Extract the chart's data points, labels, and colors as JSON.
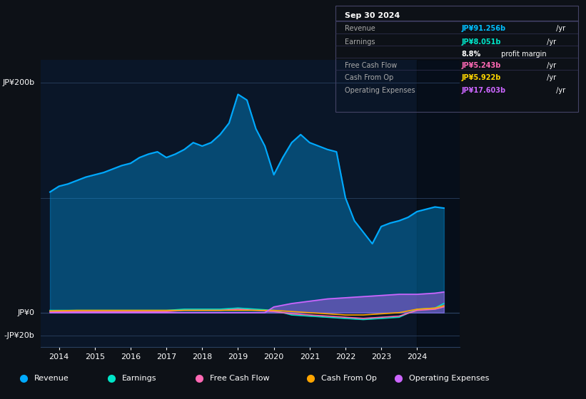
{
  "bg_color": "#0d1117",
  "plot_bg_color": "#0a1628",
  "title_box": {
    "date": "Sep 30 2024",
    "rows": [
      {
        "label": "Revenue",
        "value": "JP¥91.256b",
        "suffix": " /yr",
        "value_color": "#00bfff"
      },
      {
        "label": "Earnings",
        "value": "JP¥8.051b",
        "suffix": " /yr",
        "value_color": "#00e5c8"
      },
      {
        "label": "",
        "value": "8.8%",
        "suffix": " profit margin",
        "value_color": "#ffffff"
      },
      {
        "label": "Free Cash Flow",
        "value": "JP¥5.243b",
        "suffix": " /yr",
        "value_color": "#ff69b4"
      },
      {
        "label": "Cash From Op",
        "value": "JP¥5.922b",
        "suffix": " /yr",
        "value_color": "#ffd700"
      },
      {
        "label": "Operating Expenses",
        "value": "JP¥17.603b",
        "suffix": " /yr",
        "value_color": "#cc66ff"
      }
    ]
  },
  "ylabel_top": "JP¥200b",
  "ylabel_mid": "JP¥0",
  "ylabel_bot": "-JP¥20b",
  "ylim": [
    -30,
    220
  ],
  "xlim_start": 2013.5,
  "xlim_end": 2025.2,
  "xticks": [
    2014,
    2015,
    2016,
    2017,
    2018,
    2019,
    2020,
    2021,
    2022,
    2023,
    2024
  ],
  "series": {
    "revenue": {
      "color": "#00aaff",
      "fill_alpha": 0.35,
      "label": "Revenue"
    },
    "earnings": {
      "color": "#00e5c8",
      "label": "Earnings"
    },
    "fcf": {
      "color": "#ff69b4",
      "label": "Free Cash Flow"
    },
    "cashop": {
      "color": "#ffa500",
      "label": "Cash From Op"
    },
    "opex": {
      "color": "#cc66ff",
      "label": "Operating Expenses"
    }
  },
  "revenue_data": {
    "x": [
      2013.75,
      2014.0,
      2014.25,
      2014.5,
      2014.75,
      2015.0,
      2015.25,
      2015.5,
      2015.75,
      2016.0,
      2016.25,
      2016.5,
      2016.75,
      2017.0,
      2017.25,
      2017.5,
      2017.75,
      2018.0,
      2018.25,
      2018.5,
      2018.75,
      2019.0,
      2019.25,
      2019.5,
      2019.75,
      2020.0,
      2020.25,
      2020.5,
      2020.75,
      2021.0,
      2021.25,
      2021.5,
      2021.75,
      2022.0,
      2022.25,
      2022.5,
      2022.75,
      2023.0,
      2023.25,
      2023.5,
      2023.75,
      2024.0,
      2024.25,
      2024.5,
      2024.75
    ],
    "y": [
      105,
      110,
      112,
      115,
      118,
      120,
      122,
      125,
      128,
      130,
      135,
      138,
      140,
      135,
      138,
      142,
      148,
      145,
      148,
      155,
      165,
      190,
      185,
      160,
      145,
      120,
      135,
      148,
      155,
      148,
      145,
      142,
      140,
      100,
      80,
      70,
      60,
      75,
      78,
      80,
      83,
      88,
      90,
      92,
      91
    ]
  },
  "earnings_data": {
    "x": [
      2013.75,
      2014.5,
      2015.0,
      2015.5,
      2016.0,
      2016.5,
      2017.0,
      2017.5,
      2018.0,
      2018.5,
      2019.0,
      2019.5,
      2020.0,
      2020.5,
      2021.0,
      2021.5,
      2022.0,
      2022.5,
      2023.0,
      2023.5,
      2024.0,
      2024.5,
      2024.75
    ],
    "y": [
      2,
      2,
      2,
      2,
      2,
      2,
      2,
      3,
      3,
      3,
      4,
      3,
      2,
      -2,
      -3,
      -4,
      -5,
      -6,
      -5,
      -4,
      3,
      4,
      8
    ]
  },
  "fcf_data": {
    "x": [
      2013.75,
      2014.5,
      2015.0,
      2015.5,
      2016.0,
      2016.5,
      2017.0,
      2017.5,
      2018.0,
      2018.5,
      2019.0,
      2019.5,
      2020.0,
      2020.5,
      2021.0,
      2021.5,
      2022.0,
      2022.5,
      2023.0,
      2023.5,
      2024.0,
      2024.5,
      2024.75
    ],
    "y": [
      1,
      1,
      1,
      1,
      1,
      1,
      1,
      2,
      2,
      2,
      3,
      2,
      1,
      -1,
      -2,
      -3,
      -4,
      -5,
      -4,
      -3,
      2,
      3,
      5
    ]
  },
  "cashop_data": {
    "x": [
      2013.75,
      2014.5,
      2015.0,
      2015.5,
      2016.0,
      2016.5,
      2017.0,
      2017.5,
      2018.0,
      2018.5,
      2019.0,
      2019.5,
      2020.0,
      2020.5,
      2021.0,
      2021.5,
      2022.0,
      2022.5,
      2023.0,
      2023.5,
      2024.0,
      2024.5,
      2024.75
    ],
    "y": [
      1.5,
      2,
      2,
      2,
      2,
      2,
      2,
      2,
      2,
      2,
      2,
      2,
      2,
      1,
      0,
      -1,
      -2,
      -2,
      -1,
      0,
      3,
      4,
      6
    ]
  },
  "opex_data": {
    "x": [
      2013.75,
      2014.5,
      2015.0,
      2015.5,
      2016.0,
      2016.5,
      2017.0,
      2017.5,
      2018.0,
      2018.5,
      2019.0,
      2019.5,
      2019.75,
      2020.0,
      2020.5,
      2021.0,
      2021.5,
      2022.0,
      2022.5,
      2023.0,
      2023.5,
      2024.0,
      2024.5,
      2024.75
    ],
    "y": [
      0,
      0,
      0,
      0,
      0,
      0,
      0,
      0,
      0,
      0,
      0,
      0,
      0,
      5,
      8,
      10,
      12,
      13,
      14,
      15,
      16,
      16,
      17,
      18
    ]
  },
  "highlight_x_start": 2024.0,
  "highlight_x_end": 2025.2,
  "legend": [
    {
      "label": "Revenue",
      "color": "#00aaff"
    },
    {
      "label": "Earnings",
      "color": "#00e5c8"
    },
    {
      "label": "Free Cash Flow",
      "color": "#ff69b4"
    },
    {
      "label": "Cash From Op",
      "color": "#ffa500"
    },
    {
      "label": "Operating Expenses",
      "color": "#cc66ff"
    }
  ]
}
